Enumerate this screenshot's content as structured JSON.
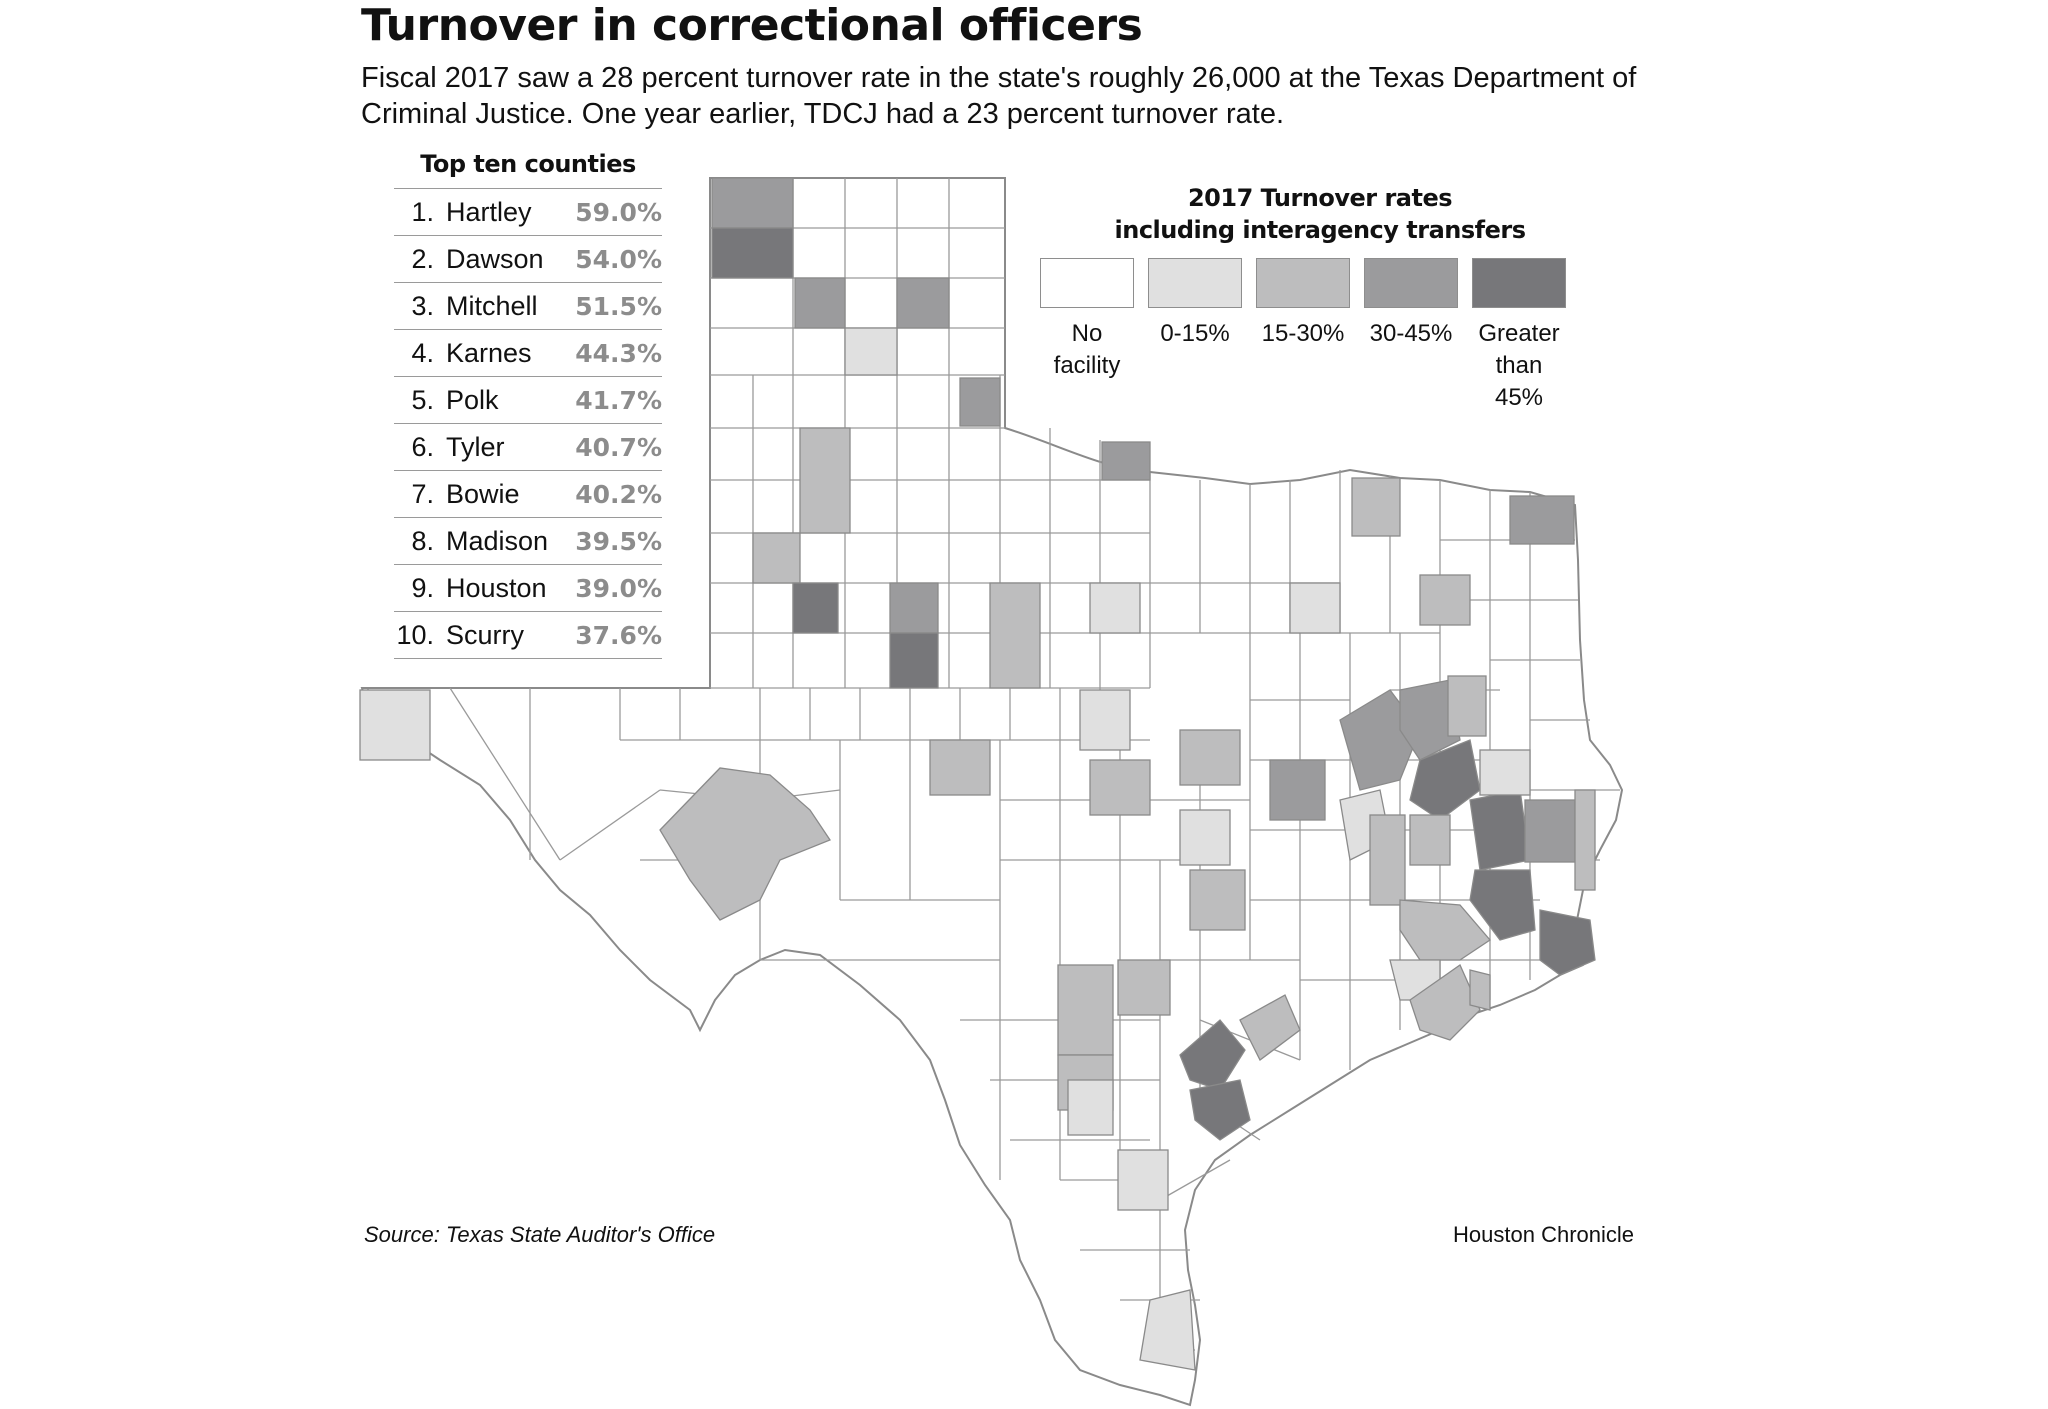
{
  "title": "Turnover in correctional officers",
  "subtitle": "Fiscal 2017 saw a 28 percent turnover rate in the state's roughly 26,000 at the Texas Department of Criminal Justice. One year earlier, TDCJ had a 23 percent turnover rate.",
  "top_ten": {
    "title": "Top ten counties",
    "rows": [
      {
        "rank": "1.",
        "county": "Hartley",
        "pct": "59.0%"
      },
      {
        "rank": "2.",
        "county": "Dawson",
        "pct": "54.0%"
      },
      {
        "rank": "3.",
        "county": "Mitchell",
        "pct": "51.5%"
      },
      {
        "rank": "4.",
        "county": "Karnes",
        "pct": "44.3%"
      },
      {
        "rank": "5.",
        "county": "Polk",
        "pct": "41.7%"
      },
      {
        "rank": "6.",
        "county": "Tyler",
        "pct": "40.7%"
      },
      {
        "rank": "7.",
        "county": "Bowie",
        "pct": "40.2%"
      },
      {
        "rank": "8.",
        "county": "Madison",
        "pct": "39.5%"
      },
      {
        "rank": "9.",
        "county": "Houston",
        "pct": "39.0%"
      },
      {
        "rank": "10.",
        "county": "Scurry",
        "pct": "37.6%"
      }
    ]
  },
  "legend": {
    "title_line1": "2017 Turnover rates",
    "title_line2": "including interagency transfers",
    "items": [
      {
        "label1": "No",
        "label2": "facility",
        "label3": "",
        "color": "#ffffff"
      },
      {
        "label1": "0-15%",
        "label2": "",
        "label3": "",
        "color": "#e0e0e0"
      },
      {
        "label1": "15-30%",
        "label2": "",
        "label3": "",
        "color": "#bdbdbe"
      },
      {
        "label1": "30-45%",
        "label2": "",
        "label3": "",
        "color": "#9b9b9d"
      },
      {
        "label1": "Greater",
        "label2": "than",
        "label3": "45%",
        "color": "#77777a"
      }
    ]
  },
  "source": "Source: Texas State Auditor's Office",
  "credit": "Houston Chronicle",
  "colors": {
    "none": "#ffffff",
    "low": "#e0e0e0",
    "mid": "#bdbdbe",
    "high": "#9b9b9d",
    "top": "#77777a",
    "border": "#8a8a8a"
  }
}
